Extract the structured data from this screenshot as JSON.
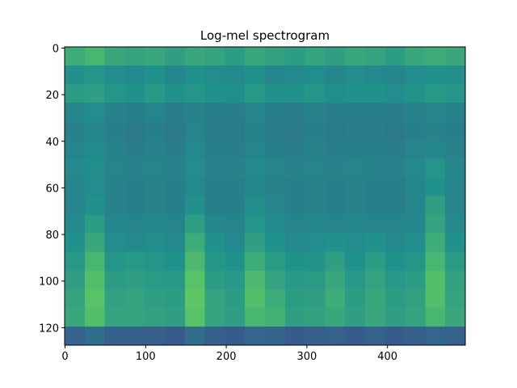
{
  "chart_data": {
    "type": "heatmap",
    "title": "Log-mel spectrogram",
    "colormap": "viridis",
    "xlim": [
      -0.5,
      496.5
    ],
    "ylim": [
      127.5,
      -0.5
    ],
    "xticks": [
      0,
      100,
      200,
      300,
      400
    ],
    "yticks": [
      0,
      20,
      40,
      60,
      80,
      100,
      120
    ],
    "z": [
      [
        0.62,
        0.66,
        0.6,
        0.58,
        0.6,
        0.56,
        0.6,
        0.58,
        0.55,
        0.6,
        0.57,
        0.55,
        0.58,
        0.56,
        0.6,
        0.58,
        0.55,
        0.6,
        0.62,
        0.6
      ],
      [
        0.5,
        0.52,
        0.48,
        0.47,
        0.5,
        0.46,
        0.5,
        0.48,
        0.47,
        0.5,
        0.46,
        0.47,
        0.49,
        0.46,
        0.48,
        0.47,
        0.46,
        0.48,
        0.5,
        0.49
      ],
      [
        0.55,
        0.56,
        0.52,
        0.5,
        0.53,
        0.5,
        0.52,
        0.5,
        0.49,
        0.53,
        0.5,
        0.5,
        0.52,
        0.49,
        0.5,
        0.5,
        0.48,
        0.51,
        0.53,
        0.52
      ],
      [
        0.46,
        0.48,
        0.44,
        0.43,
        0.45,
        0.42,
        0.44,
        0.43,
        0.42,
        0.45,
        0.43,
        0.42,
        0.44,
        0.42,
        0.43,
        0.43,
        0.42,
        0.44,
        0.45,
        0.44
      ],
      [
        0.44,
        0.46,
        0.43,
        0.41,
        0.43,
        0.41,
        0.45,
        0.42,
        0.41,
        0.44,
        0.42,
        0.41,
        0.43,
        0.41,
        0.42,
        0.42,
        0.41,
        0.43,
        0.44,
        0.43
      ],
      [
        0.45,
        0.47,
        0.44,
        0.42,
        0.44,
        0.42,
        0.47,
        0.43,
        0.42,
        0.45,
        0.43,
        0.42,
        0.44,
        0.42,
        0.43,
        0.43,
        0.42,
        0.45,
        0.46,
        0.44
      ],
      [
        0.47,
        0.49,
        0.45,
        0.44,
        0.45,
        0.44,
        0.48,
        0.44,
        0.44,
        0.47,
        0.45,
        0.44,
        0.45,
        0.44,
        0.45,
        0.44,
        0.44,
        0.47,
        0.52,
        0.46
      ],
      [
        0.46,
        0.48,
        0.44,
        0.43,
        0.44,
        0.43,
        0.47,
        0.43,
        0.43,
        0.46,
        0.44,
        0.43,
        0.44,
        0.43,
        0.44,
        0.43,
        0.43,
        0.46,
        0.5,
        0.45
      ],
      [
        0.45,
        0.5,
        0.44,
        0.43,
        0.44,
        0.43,
        0.5,
        0.43,
        0.43,
        0.49,
        0.45,
        0.43,
        0.44,
        0.43,
        0.44,
        0.43,
        0.43,
        0.45,
        0.56,
        0.45
      ],
      [
        0.47,
        0.55,
        0.46,
        0.45,
        0.46,
        0.45,
        0.56,
        0.46,
        0.45,
        0.52,
        0.47,
        0.45,
        0.46,
        0.45,
        0.46,
        0.45,
        0.45,
        0.46,
        0.58,
        0.47
      ],
      [
        0.5,
        0.6,
        0.48,
        0.47,
        0.49,
        0.47,
        0.62,
        0.5,
        0.47,
        0.56,
        0.5,
        0.47,
        0.48,
        0.5,
        0.48,
        0.5,
        0.47,
        0.49,
        0.62,
        0.5
      ],
      [
        0.53,
        0.66,
        0.52,
        0.53,
        0.52,
        0.5,
        0.68,
        0.52,
        0.5,
        0.62,
        0.54,
        0.5,
        0.51,
        0.56,
        0.5,
        0.55,
        0.5,
        0.52,
        0.66,
        0.54
      ],
      [
        0.56,
        0.7,
        0.55,
        0.56,
        0.54,
        0.53,
        0.72,
        0.55,
        0.53,
        0.68,
        0.58,
        0.53,
        0.54,
        0.6,
        0.53,
        0.58,
        0.53,
        0.55,
        0.7,
        0.57
      ],
      [
        0.58,
        0.72,
        0.57,
        0.58,
        0.56,
        0.55,
        0.74,
        0.58,
        0.55,
        0.7,
        0.62,
        0.55,
        0.56,
        0.62,
        0.55,
        0.6,
        0.55,
        0.57,
        0.7,
        0.58
      ],
      [
        0.6,
        0.7,
        0.58,
        0.58,
        0.57,
        0.56,
        0.72,
        0.58,
        0.56,
        0.66,
        0.64,
        0.56,
        0.57,
        0.6,
        0.56,
        0.6,
        0.56,
        0.58,
        0.66,
        0.6
      ],
      [
        0.32,
        0.36,
        0.3,
        0.3,
        0.3,
        0.29,
        0.36,
        0.3,
        0.29,
        0.33,
        0.32,
        0.29,
        0.3,
        0.31,
        0.29,
        0.31,
        0.29,
        0.3,
        0.33,
        0.31
      ]
    ]
  }
}
